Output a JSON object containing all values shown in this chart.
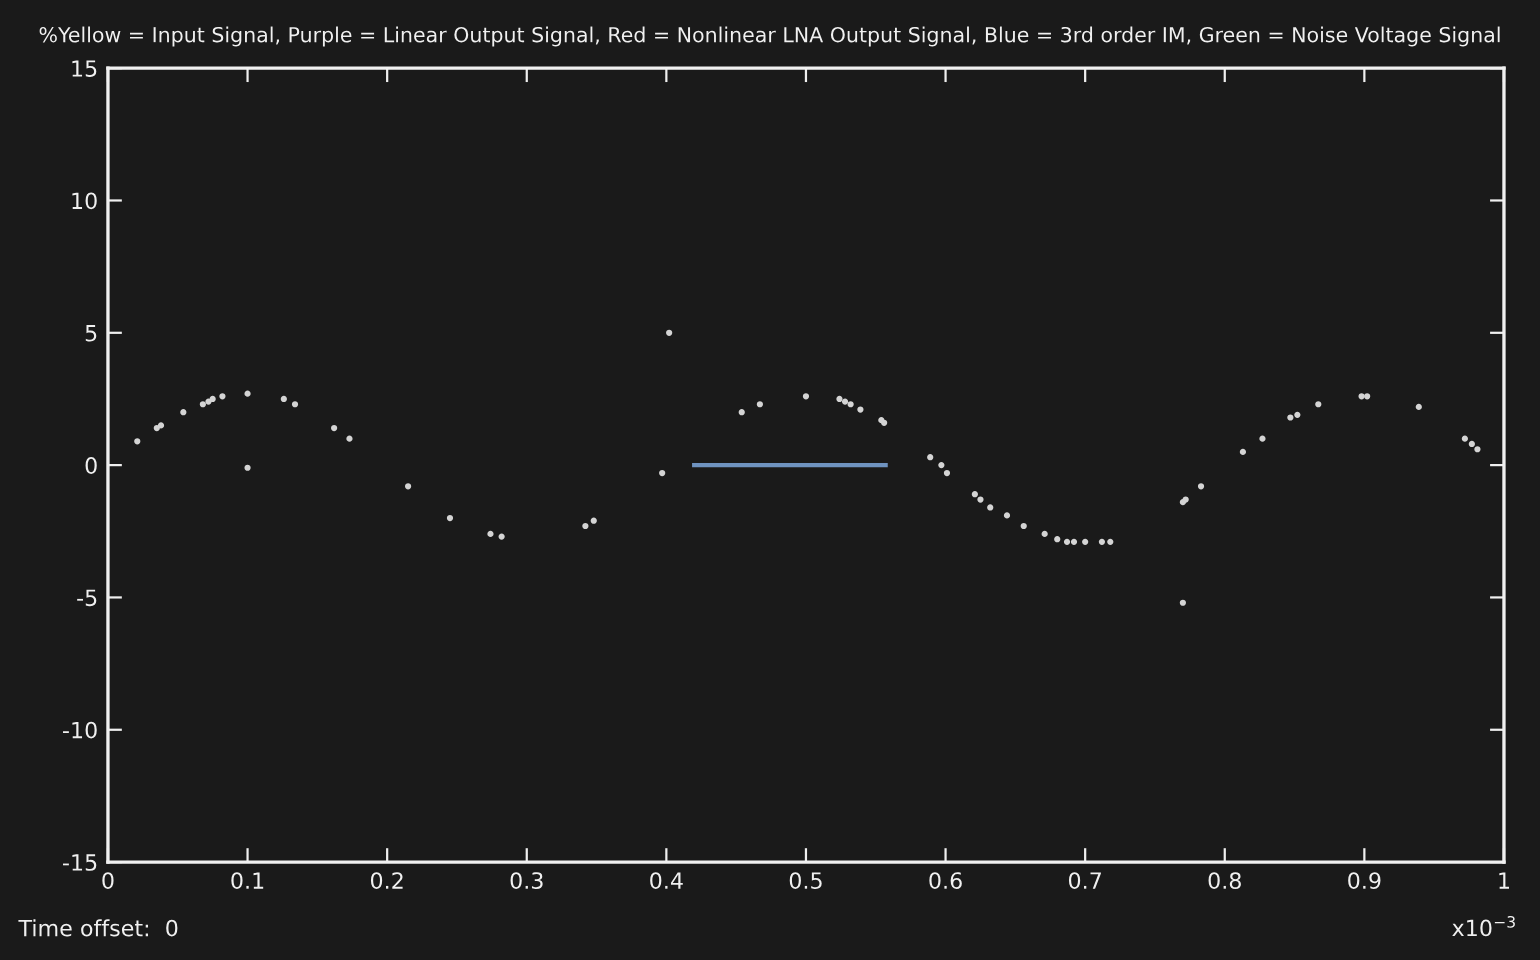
{
  "chart_data": {
    "type": "scatter",
    "title": "%Yellow = Input Signal, Purple = Linear Output Signal, Red = Nonlinear LNA Output Signal, Blue = 3rd order IM, Green = Noise Voltage Signal",
    "annotations": [
      "Time offset:  0",
      "x10$^{−3}$"
    ],
    "series": [
      {
        "marker": "circle",
        "color": "#d4d4d4",
        "x": [
          0.021,
          0.035,
          0.038,
          0.054,
          0.068,
          0.072,
          0.075,
          0.082,
          0.1,
          0.1,
          0.126,
          0.134,
          0.162,
          0.173,
          0.215,
          0.245,
          0.274,
          0.282,
          0.342,
          0.348,
          0.397,
          0.402,
          0.454,
          0.467,
          0.5,
          0.524,
          0.528,
          0.532,
          0.539,
          0.554,
          0.556,
          0.589,
          0.597,
          0.601,
          0.621,
          0.625,
          0.632,
          0.644,
          0.656,
          0.671,
          0.68,
          0.687,
          0.692,
          0.7,
          0.712,
          0.718,
          0.77,
          0.772,
          0.77,
          0.783,
          0.813,
          0.827,
          0.847,
          0.852,
          0.867,
          0.898,
          0.902,
          0.939,
          0.972,
          0.977,
          0.981
        ],
        "values": [
          0.9,
          1.4,
          1.5,
          2.0,
          2.3,
          2.4,
          2.5,
          2.6,
          2.7,
          -0.1,
          2.5,
          2.3,
          1.4,
          1.0,
          -0.8,
          -2.0,
          -2.6,
          -2.7,
          -2.3,
          -2.1,
          -0.3,
          5.0,
          2.0,
          2.3,
          2.6,
          2.5,
          2.4,
          2.3,
          2.1,
          1.7,
          1.6,
          0.3,
          0.0,
          -0.3,
          -1.1,
          -1.3,
          -1.6,
          -1.9,
          -2.3,
          -2.6,
          -2.8,
          -2.9,
          -2.9,
          -2.9,
          -2.9,
          -2.9,
          -1.4,
          -1.3,
          -5.2,
          -0.8,
          0.5,
          1.0,
          1.8,
          1.9,
          2.3,
          2.6,
          2.6,
          2.2,
          1.0,
          0.8,
          0.6
        ]
      },
      {
        "type": "line",
        "color": "#6f93c0",
        "x": [
          0.42,
          0.557
        ],
        "values": [
          0,
          0
        ]
      }
    ],
    "xlim": [
      0,
      1
    ],
    "ylim": [
      -15,
      15
    ],
    "xticks": [
      0,
      0.1,
      0.2,
      0.3,
      0.4,
      0.5,
      0.6,
      0.7,
      0.8,
      0.9,
      1
    ],
    "yticks": [
      -15,
      -10,
      -5,
      0,
      5,
      10,
      15
    ]
  }
}
